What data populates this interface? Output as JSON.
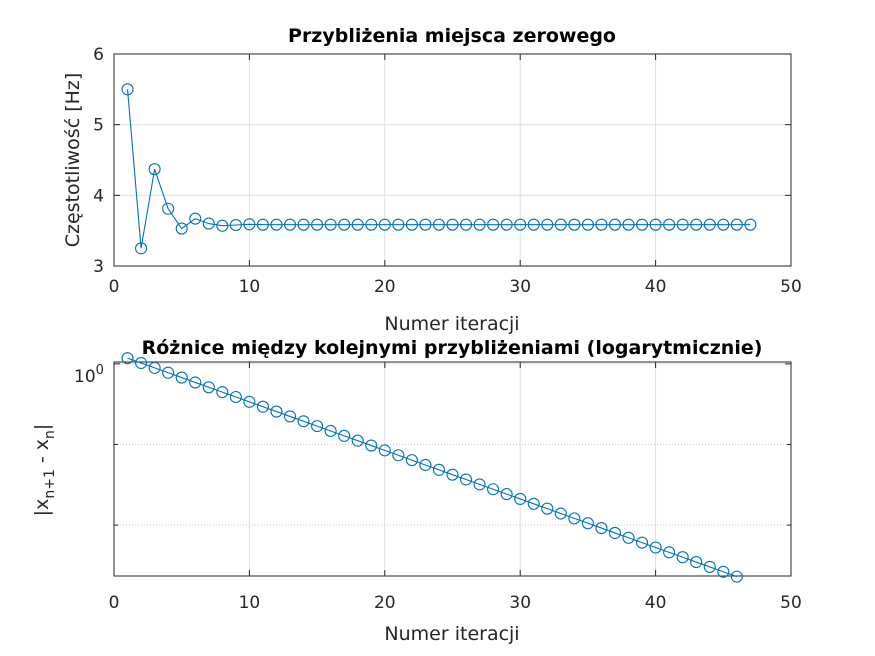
{
  "chart_data": [
    {
      "type": "line",
      "title": "Przybliżenia miejsca zerowego",
      "xlabel": "Numer iteracji",
      "ylabel": "Częstotliwość [Hz]",
      "xlim": [
        0,
        50
      ],
      "ylim": [
        3,
        6
      ],
      "xticks": [
        0,
        10,
        20,
        30,
        40,
        50
      ],
      "yticks": [
        3,
        4,
        5,
        6
      ],
      "xtick_labels": [
        "0",
        "10",
        "20",
        "30",
        "40",
        "50"
      ],
      "ytick_labels": [
        "3",
        "4",
        "5",
        "6"
      ],
      "grid": true,
      "yscale": "linear",
      "marker": "circle",
      "color": "#0072bd",
      "series": [
        {
          "x": [
            1,
            2,
            3,
            4,
            5,
            6,
            7,
            8,
            9,
            10,
            11,
            12,
            13,
            14,
            15,
            16,
            17,
            18,
            19,
            20,
            21,
            22,
            23,
            24,
            25,
            26,
            27,
            28,
            29,
            30,
            31,
            32,
            33,
            34,
            35,
            36,
            37,
            38,
            39,
            40,
            41,
            42,
            43,
            44,
            45,
            46,
            47
          ],
          "values": [
            5.5,
            3.25,
            4.37,
            3.81,
            3.53,
            3.67,
            3.6,
            3.57,
            3.58,
            3.59,
            3.585,
            3.585,
            3.585,
            3.585,
            3.585,
            3.585,
            3.585,
            3.585,
            3.585,
            3.585,
            3.585,
            3.585,
            3.585,
            3.585,
            3.585,
            3.585,
            3.585,
            3.585,
            3.585,
            3.585,
            3.585,
            3.585,
            3.585,
            3.585,
            3.585,
            3.585,
            3.585,
            3.585,
            3.585,
            3.585,
            3.585,
            3.585,
            3.585,
            3.585,
            3.585,
            3.585,
            3.585
          ]
        }
      ]
    },
    {
      "type": "line",
      "title": "Różnice między kolejnymi przybliżeniami (logarytmicznie)",
      "xlabel": "Numer iteracji",
      "ylabel_main": "|x",
      "ylabel_sub1": "n+1",
      "ylabel_mid": " - x",
      "ylabel_sub2": "n",
      "ylabel_end": "|",
      "xlim": [
        0,
        50
      ],
      "ylim": [
        7e-14,
        1.3
      ],
      "xticks": [
        0,
        10,
        20,
        30,
        40,
        50
      ],
      "xtick_labels": [
        "0",
        "10",
        "20",
        "30",
        "40",
        "50"
      ],
      "ytick_label_base": "10",
      "ytick_label_exp": "0",
      "ytick_value": 1,
      "yminor_ticks": [
        1e-10,
        1e-05
      ],
      "grid": true,
      "yscale": "log",
      "marker": "circle",
      "color": "#0072bd",
      "series": [
        {
          "x": [
            1,
            2,
            3,
            4,
            5,
            6,
            7,
            8,
            9,
            10,
            11,
            12,
            13,
            14,
            15,
            16,
            17,
            18,
            19,
            20,
            21,
            22,
            23,
            24,
            25,
            26,
            27,
            28,
            29,
            30,
            31,
            32,
            33,
            34,
            35,
            36,
            37,
            38,
            39,
            40,
            41,
            42,
            43,
            44,
            45,
            46
          ],
          "values": [
            2.25,
            1.125,
            0.5625,
            0.28125,
            0.140625,
            0.0703125,
            0.03515625,
            0.017578125,
            0.0087890625,
            0.00439453125,
            0.002197265625,
            0.0010986328125,
            0.00054931640625,
            0.000274658203125,
            0.0001373291015625,
            6.866455078125e-05,
            3.4332275390625e-05,
            1.71661376953125e-05,
            8.58306884765625e-06,
            4.291534423828125e-06,
            2.1457672119140625e-06,
            1.0728836059570312e-06,
            5.364418029785156e-07,
            2.682209014892578e-07,
            1.341104507446289e-07,
            6.705522537231445e-08,
            3.3527612686157227e-08,
            1.6763806343078613e-08,
            8.381903171539307e-09,
            4.190951585769653e-09,
            2.0954757928848267e-09,
            1.0477378964424133e-09,
            5.238689482212067e-10,
            2.6193447411060333e-10,
            1.3096723705530167e-10,
            6.548361852765083e-11,
            3.2741809263825417e-11,
            1.6370904631912708e-11,
            8.185452315956354e-12,
            4.092726157978177e-12,
            2.0463630789890885e-12,
            1.0231815394945443e-12,
            5.115907697472721e-13,
            2.5579538487363607e-13,
            1.2789769243681803e-13,
            6.394884621840902e-14
          ]
        }
      ]
    }
  ]
}
